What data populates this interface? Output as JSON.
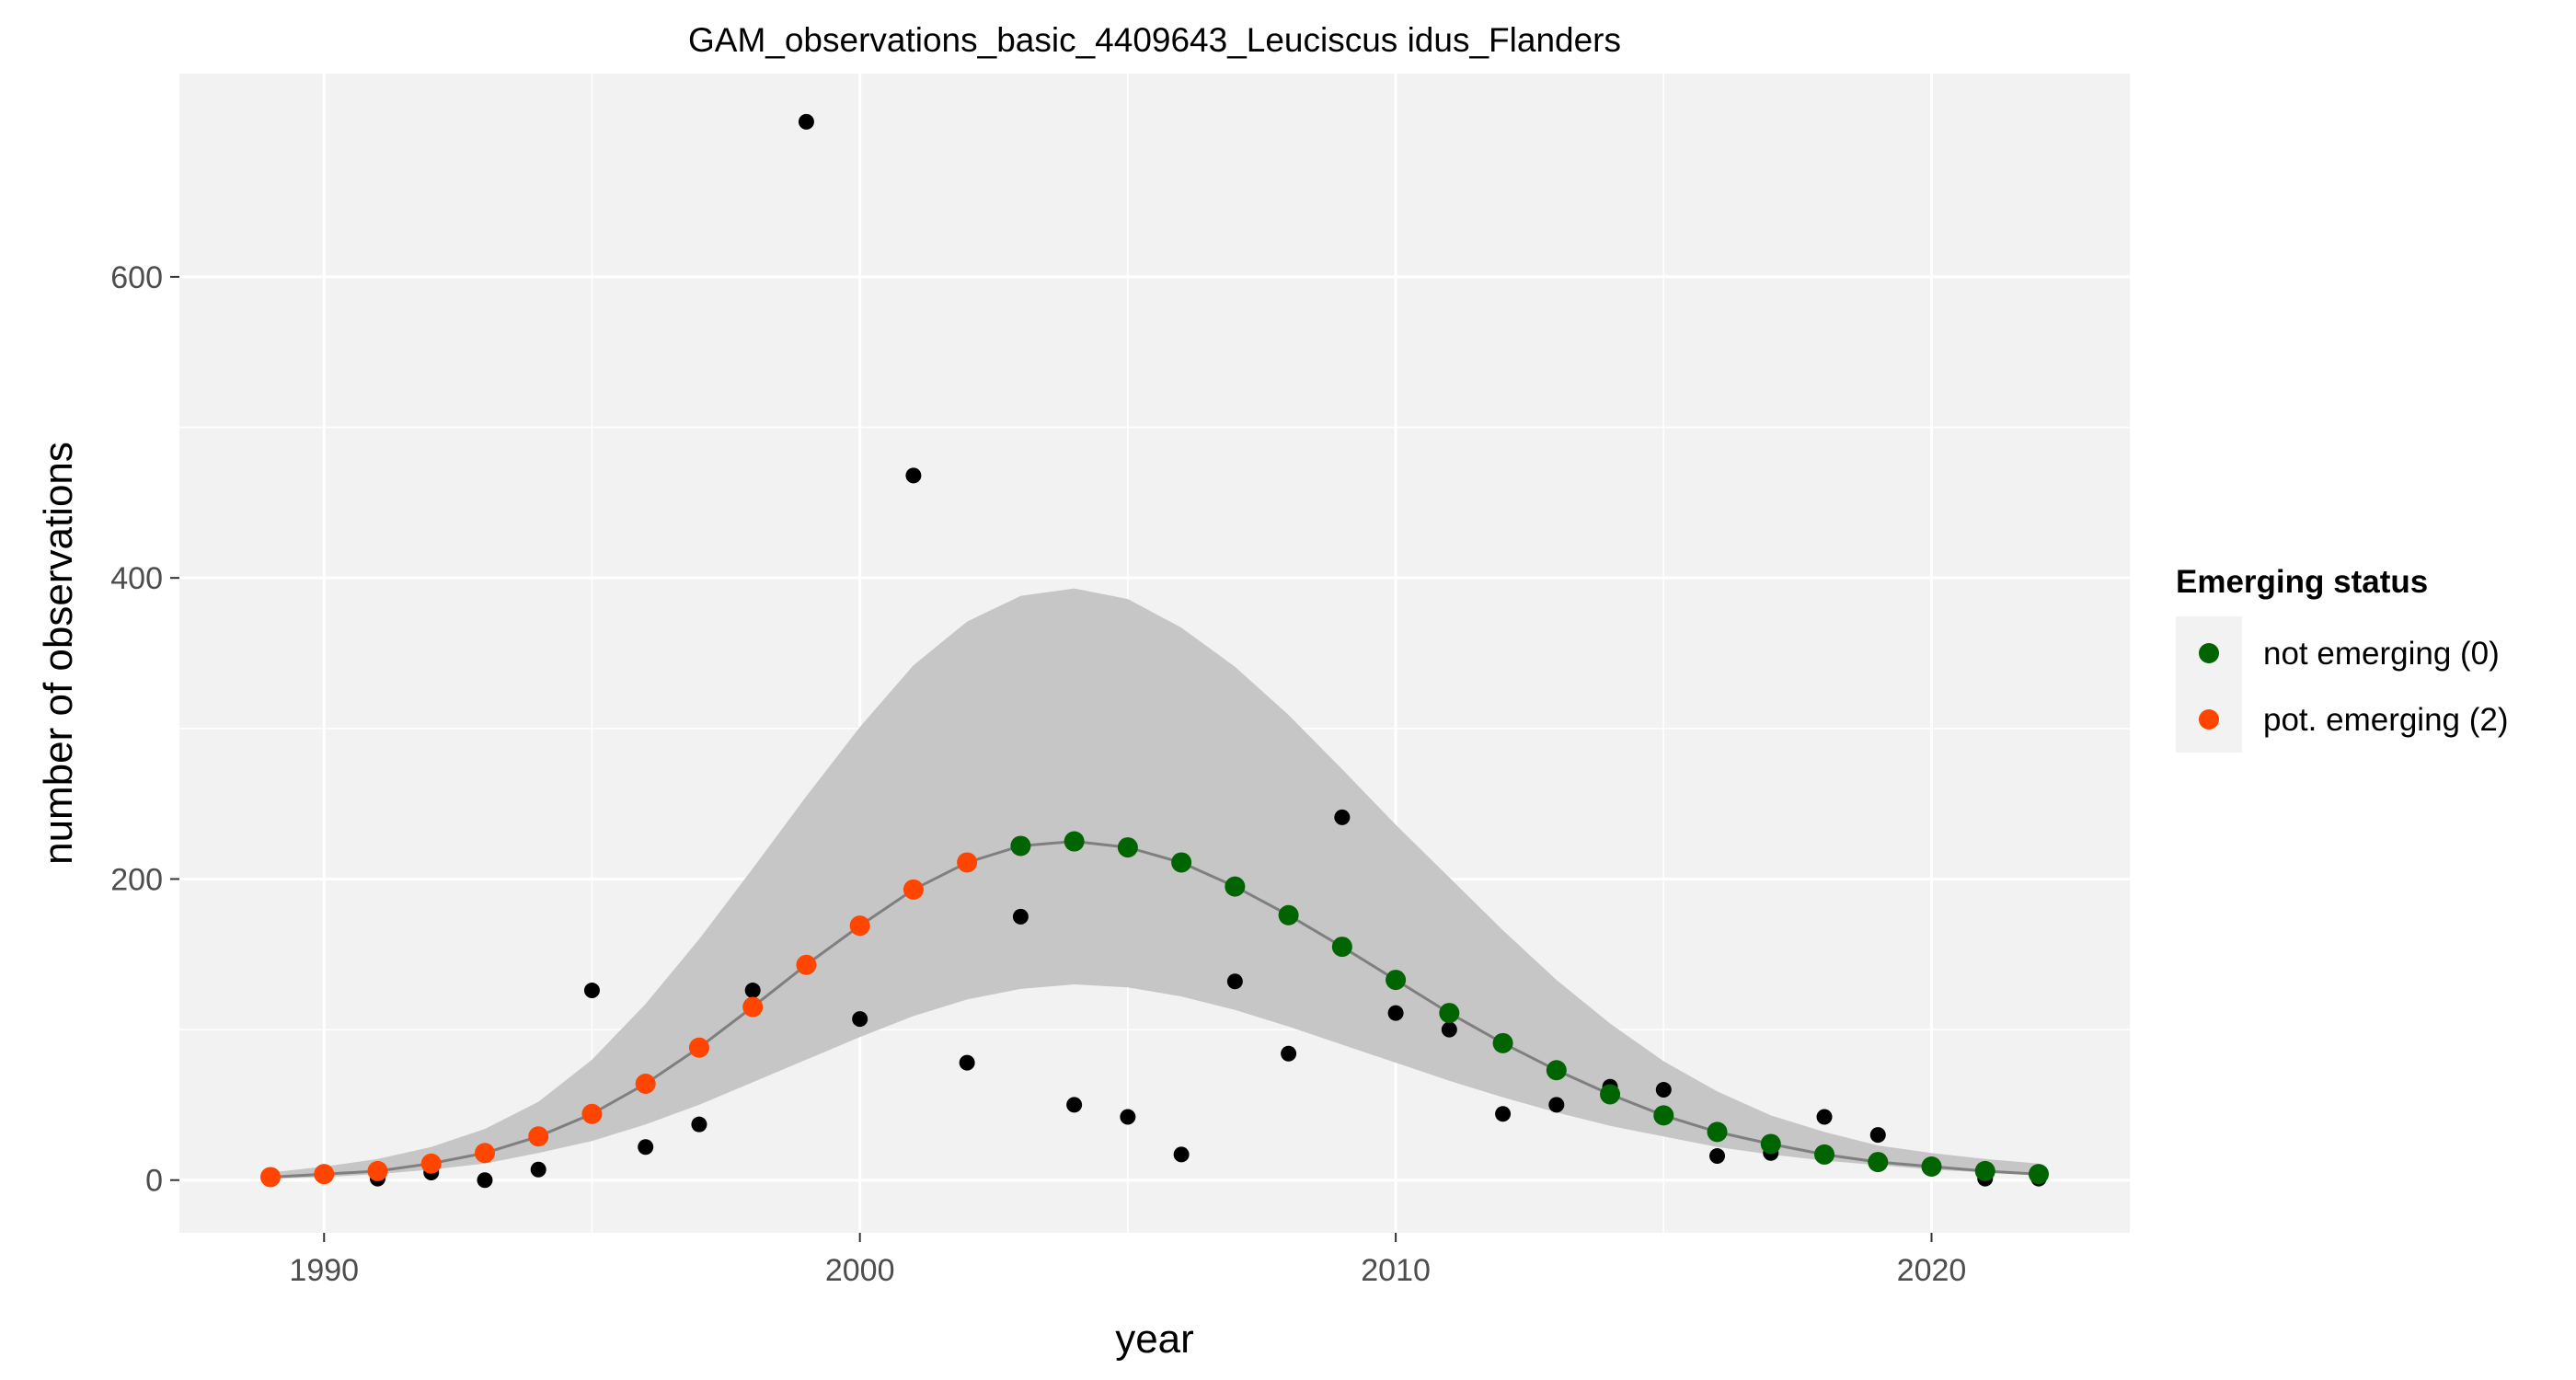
{
  "chart_data": {
    "type": "scatter",
    "title": "GAM_observations_basic_4409643_Leuciscus idus_Flanders",
    "xlabel": "year",
    "ylabel": "number of observations",
    "xlim": [
      1987.3,
      2023.7
    ],
    "ylim": [
      -35,
      735
    ],
    "x_ticks": [
      1990,
      2000,
      2010,
      2020
    ],
    "x_tick_labels": [
      "1990",
      "2000",
      "2010",
      "2020"
    ],
    "y_ticks": [
      0,
      200,
      400,
      600
    ],
    "y_tick_labels": [
      "0",
      "200",
      "400",
      "600"
    ],
    "grid": true,
    "colors": {
      "panel": "#f2f2f2",
      "grid": "#ffffff",
      "ribbon": "#c6c6c6",
      "fit_line": "#7f7f7f",
      "observed": "#000000",
      "not_emerging": "#006400",
      "pot_emerging": "#ff4500"
    },
    "legend": {
      "title": "Emerging status",
      "position": "right",
      "entries": [
        {
          "label": "not emerging (0)",
          "color": "#006400"
        },
        {
          "label": "pot. emerging (2)",
          "color": "#ff4500"
        }
      ]
    },
    "observed": {
      "x": [
        1989,
        1990,
        1991,
        1992,
        1993,
        1994,
        1995,
        1996,
        1997,
        1998,
        1999,
        2000,
        2001,
        2002,
        2003,
        2004,
        2005,
        2006,
        2007,
        2008,
        2009,
        2010,
        2011,
        2012,
        2013,
        2014,
        2015,
        2016,
        2017,
        2018,
        2019,
        2020,
        2021,
        2022
      ],
      "y": [
        2,
        5,
        1,
        5,
        0,
        7,
        126,
        22,
        37,
        126,
        703,
        107,
        468,
        78,
        175,
        50,
        42,
        17,
        132,
        84,
        241,
        111,
        100,
        44,
        50,
        62,
        60,
        16,
        18,
        42,
        30,
        8,
        1,
        1
      ]
    },
    "fit": {
      "x": [
        1989,
        1990,
        1991,
        1992,
        1993,
        1994,
        1995,
        1996,
        1997,
        1998,
        1999,
        2000,
        2001,
        2002,
        2003,
        2004,
        2005,
        2006,
        2007,
        2008,
        2009,
        2010,
        2011,
        2012,
        2013,
        2014,
        2015,
        2016,
        2017,
        2018,
        2019,
        2020,
        2021,
        2022
      ],
      "y": [
        2,
        4,
        6,
        11,
        18,
        29,
        44,
        64,
        88,
        115,
        143,
        169,
        193,
        211,
        222,
        225,
        221,
        211,
        195,
        176,
        155,
        133,
        111,
        91,
        73,
        57,
        43,
        32,
        24,
        17,
        12,
        9,
        6,
        4
      ],
      "lower": [
        1,
        2,
        4,
        7,
        11,
        18,
        26,
        37,
        50,
        65,
        80,
        95,
        109,
        120,
        127,
        130,
        128,
        122,
        113,
        102,
        90,
        78,
        66,
        55,
        45,
        36,
        29,
        22,
        17,
        13,
        10,
        7,
        5,
        3
      ],
      "upper": [
        5,
        9,
        14,
        22,
        34,
        52,
        80,
        117,
        160,
        207,
        255,
        301,
        342,
        371,
        388,
        393,
        386,
        367,
        341,
        309,
        273,
        236,
        201,
        166,
        133,
        104,
        79,
        59,
        43,
        32,
        23,
        18,
        14,
        11
      ],
      "status": [
        2,
        2,
        2,
        2,
        2,
        2,
        2,
        2,
        2,
        2,
        2,
        2,
        2,
        2,
        0,
        0,
        0,
        0,
        0,
        0,
        0,
        0,
        0,
        0,
        0,
        0,
        0,
        0,
        0,
        0,
        0,
        0,
        0,
        0
      ]
    }
  }
}
